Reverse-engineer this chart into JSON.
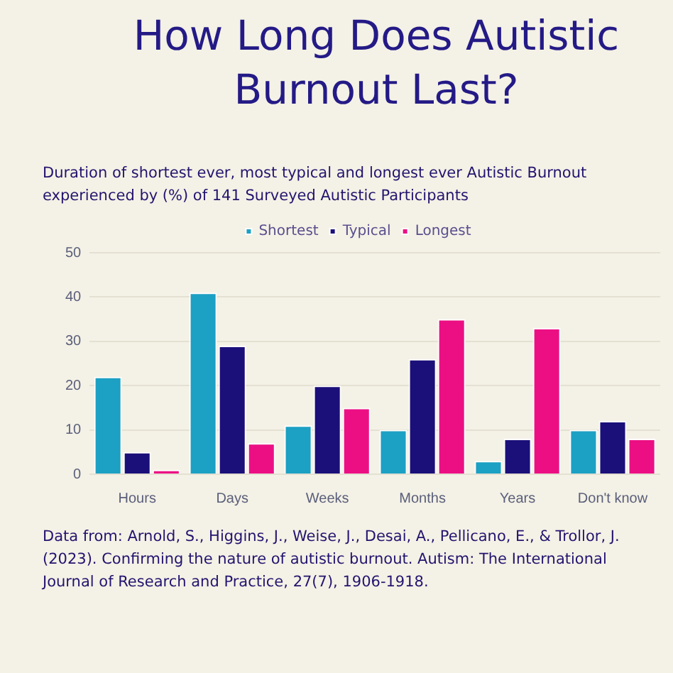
{
  "chart_data": {
    "type": "bar",
    "title": "How Long Does Autistic Burnout Last?",
    "subtitle": "Duration of shortest ever, most typical and longest ever Autistic Burnout experienced by (%) of 141 Surveyed Autistic Participants",
    "categories": [
      "Hours",
      "Days",
      "Weeks",
      "Months",
      "Years",
      "Don't know"
    ],
    "series": [
      {
        "name": "Shortest",
        "color": "#1ca0c4",
        "values": [
          22,
          41,
          11,
          10,
          3,
          10
        ]
      },
      {
        "name": "Typical",
        "color": "#1b0f7a",
        "values": [
          5,
          29,
          20,
          26,
          8,
          12
        ]
      },
      {
        "name": "Longest",
        "color": "#ec0f84",
        "values": [
          1,
          7,
          15,
          35,
          33,
          8
        ]
      }
    ],
    "ylim": [
      0,
      50
    ],
    "yticks": [
      0,
      10,
      20,
      30,
      40,
      50
    ],
    "grid": "y",
    "legend": "top",
    "annotations": [
      "Data from: Arnold, S., Higgins, J., Weise, J., Desai, A., Pellicano, E., & Trollor, J. (2023). Confirming the nature of autistic burnout. Autism: The International Journal of Research and Practice, 27(7), 1906-1918."
    ]
  }
}
